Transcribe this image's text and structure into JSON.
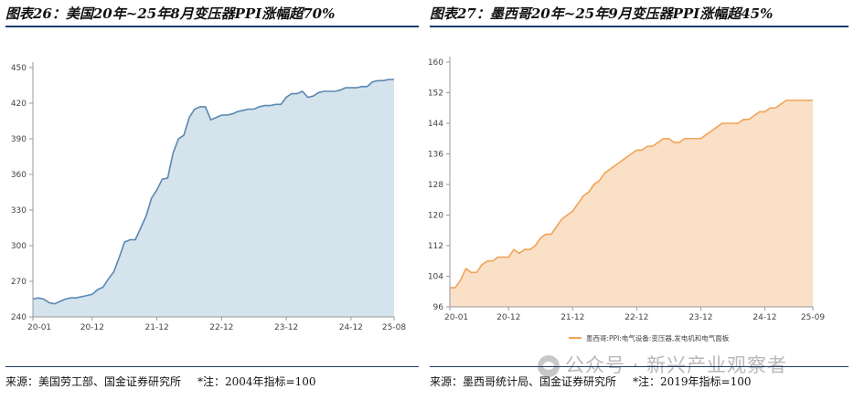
{
  "left": {
    "title": "图表26：美国20年~25年8月变压器PPI涨幅超70%",
    "source": "来源：美国劳工部、国金证券研究所",
    "note": "*注：2004年指标=100"
  },
  "right": {
    "title": "图表27：墨西哥20年~25年9月变压器PPI涨幅超45%",
    "source": "来源：墨西哥统计局、国金证券研究所",
    "note": "*注：2019年指标=100"
  },
  "watermark": "公众号 · 新兴产业观察者",
  "chart_data": [
    {
      "type": "area",
      "title": "",
      "xlabel": "",
      "ylabel": "",
      "x": [
        "20-01",
        "20-02",
        "20-03",
        "20-04",
        "20-05",
        "20-06",
        "20-07",
        "20-08",
        "20-09",
        "20-10",
        "20-11",
        "20-12",
        "21-01",
        "21-02",
        "21-03",
        "21-04",
        "21-05",
        "21-06",
        "21-07",
        "21-08",
        "21-09",
        "21-10",
        "21-11",
        "21-12",
        "22-01",
        "22-02",
        "22-03",
        "22-04",
        "22-05",
        "22-06",
        "22-07",
        "22-08",
        "22-09",
        "22-10",
        "22-11",
        "22-12",
        "23-01",
        "23-02",
        "23-03",
        "23-04",
        "23-05",
        "23-06",
        "23-07",
        "23-08",
        "23-09",
        "23-10",
        "23-11",
        "23-12",
        "24-01",
        "24-02",
        "24-03",
        "24-04",
        "24-05",
        "24-06",
        "24-07",
        "24-08",
        "24-09",
        "24-10",
        "24-11",
        "24-12",
        "25-01",
        "25-02",
        "25-03",
        "25-04",
        "25-05",
        "25-06",
        "25-07",
        "25-08"
      ],
      "xticks": [
        "20-01",
        "20-12",
        "21-12",
        "22-12",
        "23-12",
        "24-12",
        "25-08"
      ],
      "values": [
        255,
        256,
        255,
        252,
        251,
        253,
        255,
        256,
        256,
        257,
        258,
        259,
        263,
        265,
        272,
        278,
        290,
        303,
        305,
        305,
        315,
        325,
        340,
        347,
        356,
        357,
        378,
        390,
        393,
        408,
        415,
        417,
        417,
        406,
        408,
        410,
        410,
        411,
        413,
        414,
        415,
        415,
        417,
        418,
        418,
        419,
        419,
        425,
        428,
        428,
        430,
        425,
        426,
        429,
        430,
        430,
        430,
        431,
        433,
        433,
        433,
        434,
        434,
        438,
        439,
        439,
        440,
        440
      ],
      "yticks": [
        240,
        270,
        300,
        330,
        360,
        390,
        420,
        450
      ],
      "ylim": [
        240,
        450
      ],
      "grid": false,
      "legend": "none",
      "color": "#5b87b3",
      "fill": "#d4e3ec"
    },
    {
      "type": "area",
      "title": "",
      "xlabel": "",
      "ylabel": "",
      "x": [
        "20-01",
        "20-02",
        "20-03",
        "20-04",
        "20-05",
        "20-06",
        "20-07",
        "20-08",
        "20-09",
        "20-10",
        "20-11",
        "20-12",
        "21-01",
        "21-02",
        "21-03",
        "21-04",
        "21-05",
        "21-06",
        "21-07",
        "21-08",
        "21-09",
        "21-10",
        "21-11",
        "21-12",
        "22-01",
        "22-02",
        "22-03",
        "22-04",
        "22-05",
        "22-06",
        "22-07",
        "22-08",
        "22-09",
        "22-10",
        "22-11",
        "22-12",
        "23-01",
        "23-02",
        "23-03",
        "23-04",
        "23-05",
        "23-06",
        "23-07",
        "23-08",
        "23-09",
        "23-10",
        "23-11",
        "23-12",
        "24-01",
        "24-02",
        "24-03",
        "24-04",
        "24-05",
        "24-06",
        "24-07",
        "24-08",
        "24-09",
        "24-10",
        "24-11",
        "24-12",
        "25-01",
        "25-02",
        "25-03",
        "25-04",
        "25-05",
        "25-06",
        "25-07",
        "25-08",
        "25-09"
      ],
      "xticks": [
        "20-01",
        "20-12",
        "21-12",
        "22-12",
        "23-12",
        "24-12",
        "25-09"
      ],
      "values": [
        101,
        101,
        103,
        106,
        105,
        105,
        107,
        108,
        108,
        109,
        109,
        109,
        111,
        110,
        111,
        111,
        112,
        114,
        115,
        115,
        117,
        119,
        120,
        121,
        123,
        125,
        126,
        128,
        129,
        131,
        132,
        133,
        134,
        135,
        136,
        137,
        137,
        138,
        138,
        139,
        140,
        140,
        139,
        139,
        140,
        140,
        140,
        140,
        141,
        142,
        143,
        144,
        144,
        144,
        144,
        145,
        145,
        146,
        147,
        147,
        148,
        148,
        149,
        150,
        150,
        150,
        150,
        150,
        150
      ],
      "yticks": [
        96,
        104,
        112,
        120,
        128,
        136,
        144,
        152,
        160
      ],
      "ylim": [
        96,
        160
      ],
      "grid": false,
      "legend": "bottom-center",
      "series_name": "墨西哥:PPI:电气设备:变压器,发电机和电气面板",
      "color": "#f0a356",
      "fill": "#fbe0c8"
    }
  ]
}
